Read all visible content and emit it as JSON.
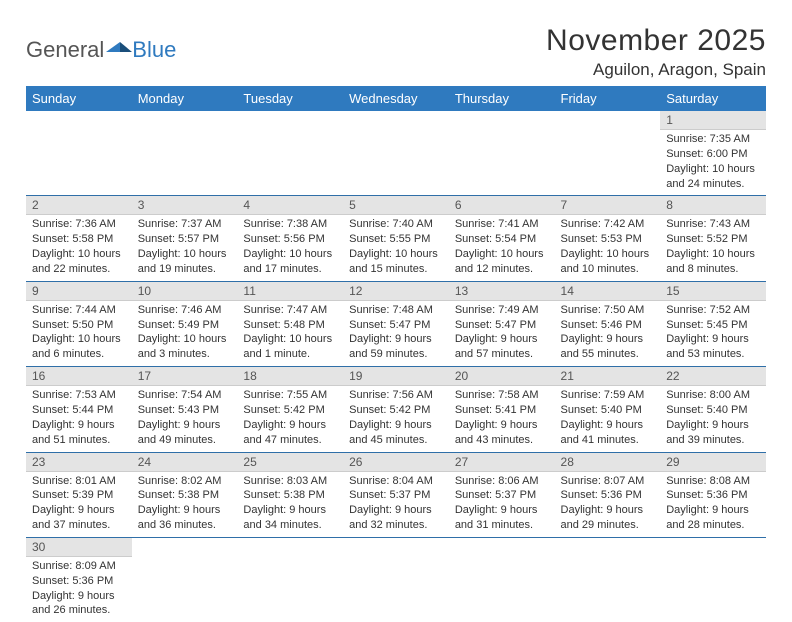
{
  "logo": {
    "part1": "General",
    "part2": "Blue"
  },
  "title": "November 2025",
  "location": "Aguilon, Aragon, Spain",
  "colors": {
    "header_bg": "#2f7abf",
    "header_text": "#ffffff",
    "daynum_bg": "#e4e4e4",
    "row_border": "#2f6fa8"
  },
  "day_names": [
    "Sunday",
    "Monday",
    "Tuesday",
    "Wednesday",
    "Thursday",
    "Friday",
    "Saturday"
  ],
  "weeks": [
    [
      null,
      null,
      null,
      null,
      null,
      null,
      {
        "n": "1",
        "sr": "Sunrise: 7:35 AM",
        "ss": "Sunset: 6:00 PM",
        "d1": "Daylight: 10 hours",
        "d2": "and 24 minutes."
      }
    ],
    [
      {
        "n": "2",
        "sr": "Sunrise: 7:36 AM",
        "ss": "Sunset: 5:58 PM",
        "d1": "Daylight: 10 hours",
        "d2": "and 22 minutes."
      },
      {
        "n": "3",
        "sr": "Sunrise: 7:37 AM",
        "ss": "Sunset: 5:57 PM",
        "d1": "Daylight: 10 hours",
        "d2": "and 19 minutes."
      },
      {
        "n": "4",
        "sr": "Sunrise: 7:38 AM",
        "ss": "Sunset: 5:56 PM",
        "d1": "Daylight: 10 hours",
        "d2": "and 17 minutes."
      },
      {
        "n": "5",
        "sr": "Sunrise: 7:40 AM",
        "ss": "Sunset: 5:55 PM",
        "d1": "Daylight: 10 hours",
        "d2": "and 15 minutes."
      },
      {
        "n": "6",
        "sr": "Sunrise: 7:41 AM",
        "ss": "Sunset: 5:54 PM",
        "d1": "Daylight: 10 hours",
        "d2": "and 12 minutes."
      },
      {
        "n": "7",
        "sr": "Sunrise: 7:42 AM",
        "ss": "Sunset: 5:53 PM",
        "d1": "Daylight: 10 hours",
        "d2": "and 10 minutes."
      },
      {
        "n": "8",
        "sr": "Sunrise: 7:43 AM",
        "ss": "Sunset: 5:52 PM",
        "d1": "Daylight: 10 hours",
        "d2": "and 8 minutes."
      }
    ],
    [
      {
        "n": "9",
        "sr": "Sunrise: 7:44 AM",
        "ss": "Sunset: 5:50 PM",
        "d1": "Daylight: 10 hours",
        "d2": "and 6 minutes."
      },
      {
        "n": "10",
        "sr": "Sunrise: 7:46 AM",
        "ss": "Sunset: 5:49 PM",
        "d1": "Daylight: 10 hours",
        "d2": "and 3 minutes."
      },
      {
        "n": "11",
        "sr": "Sunrise: 7:47 AM",
        "ss": "Sunset: 5:48 PM",
        "d1": "Daylight: 10 hours",
        "d2": "and 1 minute."
      },
      {
        "n": "12",
        "sr": "Sunrise: 7:48 AM",
        "ss": "Sunset: 5:47 PM",
        "d1": "Daylight: 9 hours",
        "d2": "and 59 minutes."
      },
      {
        "n": "13",
        "sr": "Sunrise: 7:49 AM",
        "ss": "Sunset: 5:47 PM",
        "d1": "Daylight: 9 hours",
        "d2": "and 57 minutes."
      },
      {
        "n": "14",
        "sr": "Sunrise: 7:50 AM",
        "ss": "Sunset: 5:46 PM",
        "d1": "Daylight: 9 hours",
        "d2": "and 55 minutes."
      },
      {
        "n": "15",
        "sr": "Sunrise: 7:52 AM",
        "ss": "Sunset: 5:45 PM",
        "d1": "Daylight: 9 hours",
        "d2": "and 53 minutes."
      }
    ],
    [
      {
        "n": "16",
        "sr": "Sunrise: 7:53 AM",
        "ss": "Sunset: 5:44 PM",
        "d1": "Daylight: 9 hours",
        "d2": "and 51 minutes."
      },
      {
        "n": "17",
        "sr": "Sunrise: 7:54 AM",
        "ss": "Sunset: 5:43 PM",
        "d1": "Daylight: 9 hours",
        "d2": "and 49 minutes."
      },
      {
        "n": "18",
        "sr": "Sunrise: 7:55 AM",
        "ss": "Sunset: 5:42 PM",
        "d1": "Daylight: 9 hours",
        "d2": "and 47 minutes."
      },
      {
        "n": "19",
        "sr": "Sunrise: 7:56 AM",
        "ss": "Sunset: 5:42 PM",
        "d1": "Daylight: 9 hours",
        "d2": "and 45 minutes."
      },
      {
        "n": "20",
        "sr": "Sunrise: 7:58 AM",
        "ss": "Sunset: 5:41 PM",
        "d1": "Daylight: 9 hours",
        "d2": "and 43 minutes."
      },
      {
        "n": "21",
        "sr": "Sunrise: 7:59 AM",
        "ss": "Sunset: 5:40 PM",
        "d1": "Daylight: 9 hours",
        "d2": "and 41 minutes."
      },
      {
        "n": "22",
        "sr": "Sunrise: 8:00 AM",
        "ss": "Sunset: 5:40 PM",
        "d1": "Daylight: 9 hours",
        "d2": "and 39 minutes."
      }
    ],
    [
      {
        "n": "23",
        "sr": "Sunrise: 8:01 AM",
        "ss": "Sunset: 5:39 PM",
        "d1": "Daylight: 9 hours",
        "d2": "and 37 minutes."
      },
      {
        "n": "24",
        "sr": "Sunrise: 8:02 AM",
        "ss": "Sunset: 5:38 PM",
        "d1": "Daylight: 9 hours",
        "d2": "and 36 minutes."
      },
      {
        "n": "25",
        "sr": "Sunrise: 8:03 AM",
        "ss": "Sunset: 5:38 PM",
        "d1": "Daylight: 9 hours",
        "d2": "and 34 minutes."
      },
      {
        "n": "26",
        "sr": "Sunrise: 8:04 AM",
        "ss": "Sunset: 5:37 PM",
        "d1": "Daylight: 9 hours",
        "d2": "and 32 minutes."
      },
      {
        "n": "27",
        "sr": "Sunrise: 8:06 AM",
        "ss": "Sunset: 5:37 PM",
        "d1": "Daylight: 9 hours",
        "d2": "and 31 minutes."
      },
      {
        "n": "28",
        "sr": "Sunrise: 8:07 AM",
        "ss": "Sunset: 5:36 PM",
        "d1": "Daylight: 9 hours",
        "d2": "and 29 minutes."
      },
      {
        "n": "29",
        "sr": "Sunrise: 8:08 AM",
        "ss": "Sunset: 5:36 PM",
        "d1": "Daylight: 9 hours",
        "d2": "and 28 minutes."
      }
    ],
    [
      {
        "n": "30",
        "sr": "Sunrise: 8:09 AM",
        "ss": "Sunset: 5:36 PM",
        "d1": "Daylight: 9 hours",
        "d2": "and 26 minutes."
      },
      null,
      null,
      null,
      null,
      null,
      null
    ]
  ]
}
